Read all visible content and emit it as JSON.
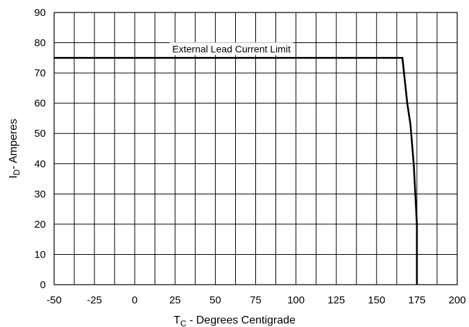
{
  "chart_data": {
    "type": "line",
    "xlabel": {
      "main": "T",
      "sub": "C",
      "rest": " - Degrees Centigrade"
    },
    "ylabel": {
      "main": "I",
      "sub": "D",
      "rest": "- Amperes"
    },
    "xlim": [
      -50,
      200
    ],
    "ylim": [
      0,
      90
    ],
    "xticks": [
      -50,
      -25,
      0,
      25,
      50,
      75,
      100,
      125,
      150,
      175,
      200
    ],
    "yticks": [
      0,
      10,
      20,
      30,
      40,
      50,
      60,
      70,
      80,
      90
    ],
    "grid": true,
    "annotations": [
      {
        "text": "External Lead Current Limit",
        "x": 60,
        "y": 78
      }
    ],
    "series": [
      {
        "points": [
          [
            -50,
            75
          ],
          [
            166,
            75
          ],
          [
            169,
            60
          ],
          [
            171,
            53
          ],
          [
            173,
            40
          ],
          [
            174,
            30
          ],
          [
            175,
            20
          ],
          [
            175,
            10
          ],
          [
            175,
            0
          ]
        ]
      }
    ]
  }
}
